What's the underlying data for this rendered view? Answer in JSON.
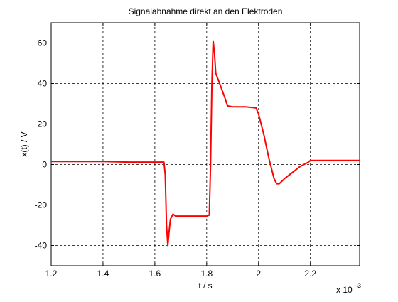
{
  "chart_data": {
    "type": "line",
    "title": "Signalabnahme direkt an den Elektroden",
    "x_label": "t / s",
    "y_label": "x(t) / V",
    "x_multiplier": "x 10",
    "x_multiplier_exponent": "-3",
    "xlim": [
      1.2,
      2.39
    ],
    "ylim": [
      -50,
      70
    ],
    "xticks": [
      1.2,
      1.4,
      1.6,
      1.8,
      2,
      2.2
    ],
    "yticks": [
      -40,
      -20,
      0,
      20,
      40,
      60
    ],
    "grid": true,
    "series": [
      {
        "color": "#ff0000",
        "x": [
          1.2,
          1.3,
          1.4,
          1.5,
          1.6,
          1.635,
          1.64,
          1.645,
          1.65,
          1.655,
          1.66,
          1.67,
          1.68,
          1.7,
          1.75,
          1.8,
          1.81,
          1.815,
          1.82,
          1.825,
          1.83,
          1.835,
          1.85,
          1.87,
          1.88,
          1.9,
          1.95,
          1.99,
          2.0,
          2.02,
          2.04,
          2.06,
          2.07,
          2.08,
          2.1,
          2.13,
          2.16,
          2.19,
          2.2,
          2.25,
          2.3,
          2.39
        ],
        "values": [
          1.5,
          1.5,
          1.5,
          1.2,
          1.2,
          1.2,
          -5,
          -30,
          -40,
          -33,
          -27,
          -24.5,
          -25.5,
          -25.5,
          -25.5,
          -25.5,
          -25,
          0,
          40,
          61,
          55,
          45,
          40,
          33,
          29,
          28.5,
          28.5,
          28,
          25,
          15,
          3,
          -7,
          -9.5,
          -9.5,
          -7,
          -4,
          -1,
          1,
          2,
          2,
          2,
          2
        ]
      }
    ]
  }
}
